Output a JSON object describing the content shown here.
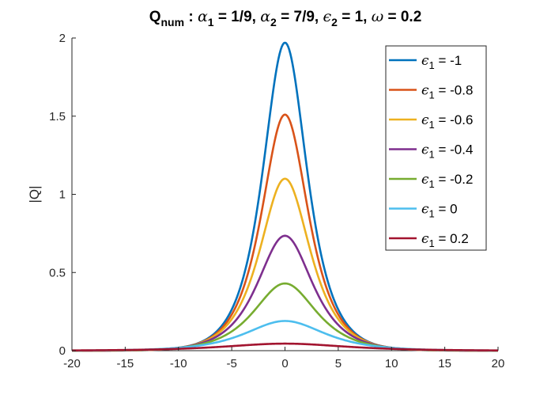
{
  "chart_data": {
    "type": "line",
    "title": {
      "prefix": "Q",
      "prefix_sub": "num",
      "parts": [
        {
          "text": " : "
        },
        {
          "sym": "α"
        },
        {
          "sub": "1"
        },
        {
          "text": " = 1/9, "
        },
        {
          "sym": "α"
        },
        {
          "sub": "2"
        },
        {
          "text": " = 7/9, "
        },
        {
          "sym": "ϵ"
        },
        {
          "sub": "2"
        },
        {
          "text": " = 1, "
        },
        {
          "sym": "ω"
        },
        {
          "text": " = 0.2"
        }
      ]
    },
    "xlabel": "",
    "ylabel": "|Q|",
    "xlim": [
      -20,
      20
    ],
    "ylim": [
      0,
      2
    ],
    "xticks": [
      "-20",
      "-15",
      "-10",
      "-5",
      "0",
      "5",
      "10",
      "15",
      "20"
    ],
    "yticks": [
      "0",
      "0.5",
      "1",
      "1.5",
      "2"
    ],
    "grid": false,
    "legend_position": "top-right",
    "series": [
      {
        "name": "= -1",
        "legend_symbol": "ϵ",
        "legend_sub": "1",
        "color": "#0072BD",
        "peak": 1.97,
        "sigma": 1.85
      },
      {
        "name": "= -0.8",
        "legend_symbol": "ϵ",
        "legend_sub": "1",
        "color": "#D95319",
        "peak": 1.51,
        "sigma": 1.95
      },
      {
        "name": "= -0.6",
        "legend_symbol": "ϵ",
        "legend_sub": "1",
        "color": "#EDB120",
        "peak": 1.1,
        "sigma": 2.1
      },
      {
        "name": "= -0.4",
        "legend_symbol": "ϵ",
        "legend_sub": "1",
        "color": "#7E2F8E",
        "peak": 0.735,
        "sigma": 2.3
      },
      {
        "name": "= -0.2",
        "legend_symbol": "ϵ",
        "legend_sub": "1",
        "color": "#77AC30",
        "peak": 0.43,
        "sigma": 2.6
      },
      {
        "name": "= 0",
        "legend_symbol": "ϵ",
        "legend_sub": "1",
        "color": "#4DBEEE",
        "peak": 0.19,
        "sigma": 3.3
      },
      {
        "name": "= 0.2",
        "legend_symbol": "ϵ",
        "legend_sub": "1",
        "color": "#A2142F",
        "peak": 0.045,
        "sigma": 5.0
      }
    ]
  }
}
